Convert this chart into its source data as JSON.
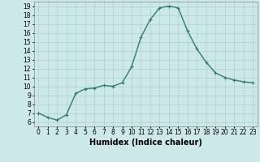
{
  "x": [
    0,
    1,
    2,
    3,
    4,
    5,
    6,
    7,
    8,
    9,
    10,
    11,
    12,
    13,
    14,
    15,
    16,
    17,
    18,
    19,
    20,
    21,
    22,
    23
  ],
  "y": [
    7.0,
    6.5,
    6.2,
    6.8,
    9.2,
    9.7,
    9.8,
    10.1,
    10.0,
    10.4,
    12.2,
    15.5,
    17.5,
    18.8,
    19.0,
    18.8,
    16.2,
    14.2,
    12.7,
    11.5,
    11.0,
    10.7,
    10.5,
    10.4
  ],
  "line_color": "#2e7d6e",
  "marker": "+",
  "marker_size": 3,
  "bg_color": "#cce8e8",
  "grid_color": "#b0d0d0",
  "xlabel": "Humidex (Indice chaleur)",
  "xlabel_fontsize": 7,
  "xlim": [
    -0.5,
    23.5
  ],
  "ylim": [
    5.5,
    19.5
  ],
  "yticks": [
    6,
    7,
    8,
    9,
    10,
    11,
    12,
    13,
    14,
    15,
    16,
    17,
    18,
    19
  ],
  "xticks": [
    0,
    1,
    2,
    3,
    4,
    5,
    6,
    7,
    8,
    9,
    10,
    11,
    12,
    13,
    14,
    15,
    16,
    17,
    18,
    19,
    20,
    21,
    22,
    23
  ],
  "tick_fontsize": 5.5,
  "line_width": 1.0
}
